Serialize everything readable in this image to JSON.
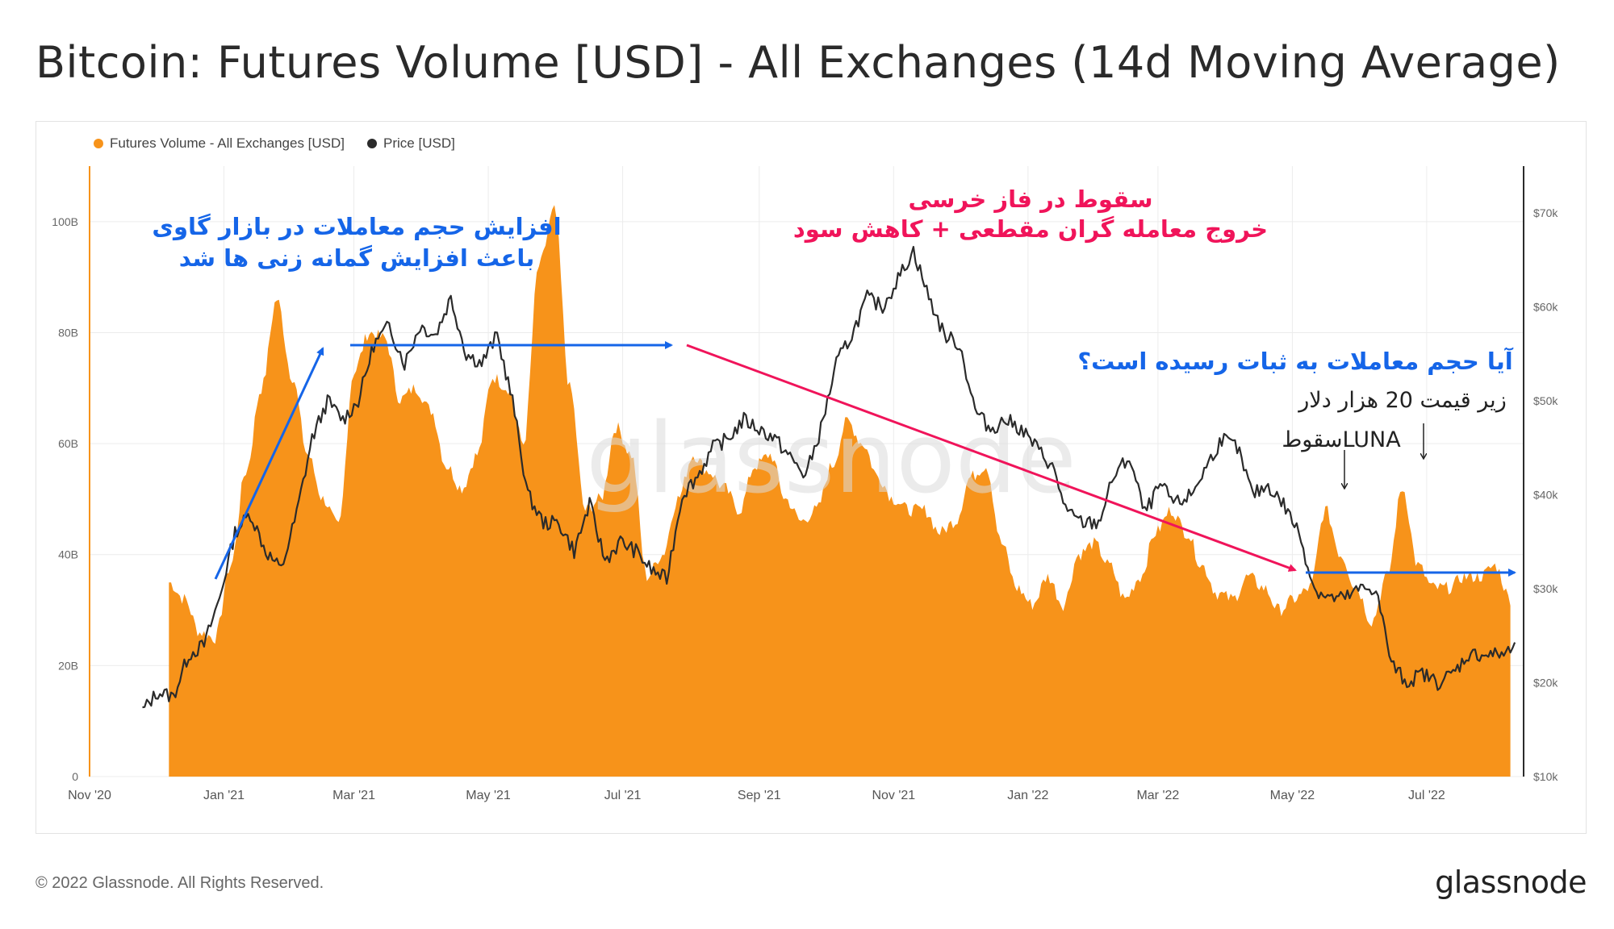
{
  "title": "Bitcoin: Futures Volume [USD] - All Exchanges (14d Moving Average)",
  "footer": "© 2022 Glassnode. All Rights Reserved.",
  "brand": "glassnode",
  "watermark": "glassnode",
  "colors": {
    "volume": "#f7931a",
    "price": "#2b2b2b",
    "blue": "#1565e8",
    "pink": "#f0145a",
    "grid": "#ececec"
  },
  "legend": [
    {
      "label": "Futures Volume - All Exchanges [USD]",
      "color": "#f7931a"
    },
    {
      "label": "Price [USD]",
      "color": "#2b2b2b"
    }
  ],
  "annotations": {
    "bull_line1": "افزایش حجم معاملات در بازار گاوی",
    "bull_line2": "باعث افزایش گمانه زنی ها شد",
    "bear_line1": "سقوط در فاز خرسی",
    "bear_line2": "خروج معامله گران مقطعی + کاهش سود",
    "question": "آیا حجم معاملات به ثبات رسیده است؟",
    "below20k": "زیر قیمت 20 هزار دلار",
    "luna": "سقوطLUNA"
  },
  "chart_data": {
    "type": "area",
    "x_ticks": [
      "Nov '20",
      "Jan '21",
      "Mar '21",
      "May '21",
      "Jul '21",
      "Sep '21",
      "Nov '21",
      "Jan '22",
      "Mar '22",
      "May '22",
      "Jul '22"
    ],
    "y_left": {
      "ticks": [
        "0",
        "20B",
        "40B",
        "60B",
        "80B",
        "100B"
      ],
      "range": [
        0,
        110
      ]
    },
    "y_right": {
      "ticks": [
        "$10k",
        "$20k",
        "$30k",
        "$40k",
        "$50k",
        "$60k",
        "$70k"
      ],
      "range": [
        10,
        75
      ]
    },
    "series": [
      {
        "name": "Futures Volume - All Exchanges [USD]",
        "unit": "B",
        "x": [
          "2020-12-07",
          "2020-12-14",
          "2020-12-21",
          "2020-12-28",
          "2021-01-04",
          "2021-01-11",
          "2021-01-18",
          "2021-01-25",
          "2021-02-01",
          "2021-02-08",
          "2021-02-15",
          "2021-02-22",
          "2021-03-01",
          "2021-03-08",
          "2021-03-15",
          "2021-03-22",
          "2021-03-29",
          "2021-04-05",
          "2021-04-12",
          "2021-04-19",
          "2021-04-26",
          "2021-05-03",
          "2021-05-10",
          "2021-05-17",
          "2021-05-24",
          "2021-05-31",
          "2021-06-07",
          "2021-06-14",
          "2021-06-21",
          "2021-06-28",
          "2021-07-05",
          "2021-07-12",
          "2021-07-19",
          "2021-07-26",
          "2021-08-02",
          "2021-08-09",
          "2021-08-16",
          "2021-08-23",
          "2021-08-30",
          "2021-09-06",
          "2021-09-13",
          "2021-09-20",
          "2021-09-27",
          "2021-10-04",
          "2021-10-11",
          "2021-10-18",
          "2021-10-25",
          "2021-11-01",
          "2021-11-08",
          "2021-11-15",
          "2021-11-22",
          "2021-11-29",
          "2021-12-06",
          "2021-12-13",
          "2021-12-20",
          "2021-12-27",
          "2022-01-03",
          "2022-01-10",
          "2022-01-17",
          "2022-01-24",
          "2022-01-31",
          "2022-02-07",
          "2022-02-14",
          "2022-02-21",
          "2022-02-28",
          "2022-03-07",
          "2022-03-14",
          "2022-03-21",
          "2022-03-28",
          "2022-04-04",
          "2022-04-11",
          "2022-04-18",
          "2022-04-25",
          "2022-05-02",
          "2022-05-09",
          "2022-05-16",
          "2022-05-23",
          "2022-05-30",
          "2022-06-06",
          "2022-06-13",
          "2022-06-20",
          "2022-06-27",
          "2022-07-04",
          "2022-07-11",
          "2022-07-18",
          "2022-07-25",
          "2022-08-01",
          "2022-08-08"
        ],
        "values": [
          35,
          32,
          26,
          25,
          38,
          55,
          70,
          86,
          72,
          58,
          50,
          45,
          73,
          80,
          79,
          68,
          70,
          66,
          56,
          52,
          58,
          72,
          70,
          60,
          92,
          102,
          70,
          48,
          50,
          63,
          58,
          36,
          40,
          50,
          58,
          55,
          52,
          48,
          56,
          58,
          50,
          46,
          48,
          56,
          64,
          60,
          54,
          50,
          48,
          48,
          44,
          46,
          54,
          56,
          42,
          34,
          31,
          36,
          31,
          40,
          42,
          38,
          32,
          36,
          44,
          48,
          44,
          38,
          33,
          32,
          36,
          34,
          30,
          32,
          34,
          48,
          40,
          34,
          28,
          36,
          52,
          38,
          34,
          34,
          36,
          36,
          38,
          32
        ]
      },
      {
        "name": "Price [USD]",
        "unit": "$k",
        "x": [
          "2020-11-25",
          "2020-12-02",
          "2020-12-09",
          "2020-12-16",
          "2020-12-23",
          "2020-12-30",
          "2021-01-06",
          "2021-01-13",
          "2021-01-20",
          "2021-01-27",
          "2021-02-03",
          "2021-02-10",
          "2021-02-17",
          "2021-02-24",
          "2021-03-03",
          "2021-03-10",
          "2021-03-17",
          "2021-03-24",
          "2021-03-31",
          "2021-04-07",
          "2021-04-14",
          "2021-04-21",
          "2021-04-28",
          "2021-05-05",
          "2021-05-12",
          "2021-05-19",
          "2021-05-26",
          "2021-06-02",
          "2021-06-09",
          "2021-06-16",
          "2021-06-23",
          "2021-06-30",
          "2021-07-07",
          "2021-07-14",
          "2021-07-21",
          "2021-07-28",
          "2021-08-04",
          "2021-08-11",
          "2021-08-18",
          "2021-08-25",
          "2021-09-01",
          "2021-09-08",
          "2021-09-15",
          "2021-09-22",
          "2021-09-29",
          "2021-10-06",
          "2021-10-13",
          "2021-10-20",
          "2021-10-27",
          "2021-11-03",
          "2021-11-10",
          "2021-11-17",
          "2021-11-24",
          "2021-12-01",
          "2021-12-08",
          "2021-12-15",
          "2021-12-22",
          "2021-12-29",
          "2022-01-05",
          "2022-01-12",
          "2022-01-19",
          "2022-01-26",
          "2022-02-02",
          "2022-02-09",
          "2022-02-16",
          "2022-02-23",
          "2022-03-02",
          "2022-03-09",
          "2022-03-16",
          "2022-03-23",
          "2022-03-30",
          "2022-04-06",
          "2022-04-13",
          "2022-04-20",
          "2022-04-27",
          "2022-05-04",
          "2022-05-11",
          "2022-05-18",
          "2022-05-25",
          "2022-06-01",
          "2022-06-08",
          "2022-06-15",
          "2022-06-22",
          "2022-06-29",
          "2022-07-06",
          "2022-07-13",
          "2022-07-20",
          "2022-07-27",
          "2022-08-03",
          "2022-08-10"
        ],
        "values": [
          17,
          19,
          18.5,
          23,
          24,
          29,
          36,
          38,
          34,
          32,
          38,
          46,
          50,
          48,
          50,
          56,
          58,
          54,
          58,
          57,
          61,
          55,
          54,
          57,
          50,
          40,
          37,
          37,
          34,
          39,
          33,
          35,
          34,
          32,
          31,
          40,
          42,
          45,
          46,
          48,
          47,
          46,
          44,
          42,
          47,
          54,
          57,
          61,
          60,
          63,
          66,
          61,
          57,
          56,
          49,
          47,
          48,
          47,
          45,
          43,
          38,
          37,
          37,
          42,
          44,
          38,
          41,
          39,
          40,
          43,
          46,
          45,
          40,
          41,
          39,
          36,
          30,
          29,
          29,
          30,
          30,
          22,
          20,
          21,
          20,
          21,
          23,
          23,
          23,
          23.5
        ]
      }
    ],
    "title": "Bitcoin: Futures Volume [USD] - All Exchanges (14d Moving Average)",
    "grid": true,
    "legend_position": "top-left"
  }
}
